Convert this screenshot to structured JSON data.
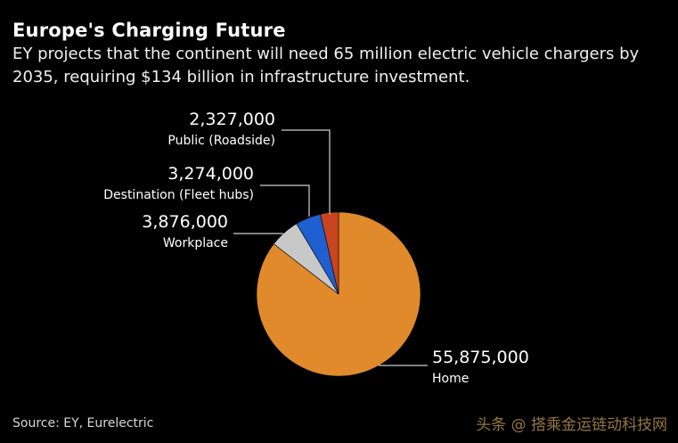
{
  "header": {
    "title": "Europe's Charging Future",
    "subtitle": "EY projects that the continent will need 65 million electric vehicle chargers by 2035, requiring $134 billion in infrastructure investment."
  },
  "footer": {
    "source": "Source: EY, Eurelectric",
    "watermark": "头条 @ 搭乘金运链动科技网"
  },
  "chart_data": {
    "type": "pie",
    "title": "",
    "slices": [
      {
        "label": "Home",
        "value": 55875000,
        "value_label": "55,875,000",
        "color": "#e08a2c"
      },
      {
        "label": "Workplace",
        "value": 3876000,
        "value_label": "3,876,000",
        "color": "#c8c8c8"
      },
      {
        "label": "Destination (Fleet hubs)",
        "value": 3274000,
        "value_label": "3,274,000",
        "color": "#1f5fcf"
      },
      {
        "label": "Public (Roadside)",
        "value": 2327000,
        "value_label": "2,327,000",
        "color": "#c9451f"
      }
    ],
    "legend": "callout labels"
  }
}
